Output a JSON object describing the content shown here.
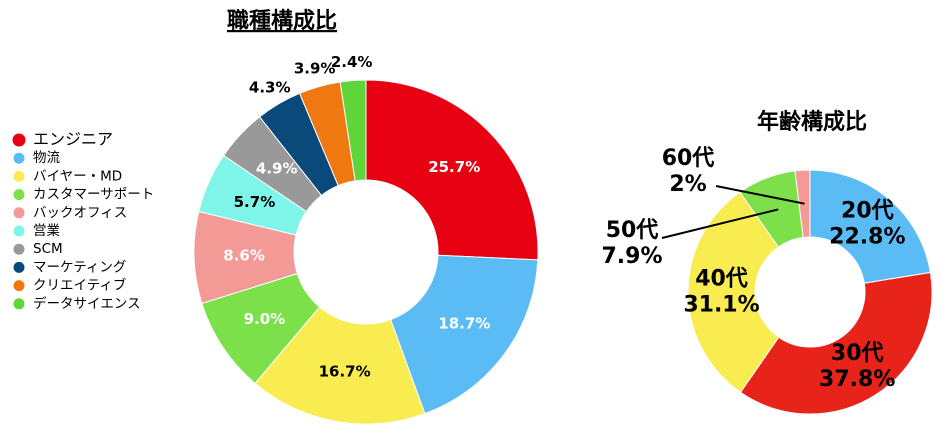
{
  "chart_data": [
    {
      "type": "pie",
      "title": "職種構成比",
      "categories": [
        "エンジニア",
        "物流",
        "バイヤー・MD",
        "カスタマーサポート",
        "バックオフィス",
        "営業",
        "SCM",
        "マーケティング",
        "クリエイティブ",
        "データサイエンス"
      ],
      "values": [
        25.7,
        18.7,
        16.7,
        9.0,
        8.6,
        5.7,
        4.9,
        4.3,
        3.9,
        2.4
      ],
      "value_labels": [
        "25.7%",
        "18.7%",
        "16.7%",
        "9.0%",
        "8.6%",
        "5.7%",
        "4.9%",
        "4.3%",
        "3.9%",
        "2.4%"
      ],
      "colors": [
        "#e60012",
        "#5bbcf5",
        "#f8ec50",
        "#7be04a",
        "#f49a96",
        "#7ff5ea",
        "#999999",
        "#0a4a7a",
        "#f07810",
        "#5ed63a"
      ],
      "legend": "left"
    },
    {
      "type": "pie",
      "title": "年齢構成比",
      "categories": [
        "20代",
        "30代",
        "40代",
        "50代",
        "60代"
      ],
      "values": [
        22.8,
        37.8,
        31.1,
        7.9,
        2
      ],
      "value_labels": [
        "22.8%",
        "37.8%",
        "31.1%",
        "7.9%",
        "2%"
      ],
      "colors": [
        "#5bbcf5",
        "#e8231a",
        "#f8ec50",
        "#7be04a",
        "#f49a96"
      ]
    }
  ]
}
